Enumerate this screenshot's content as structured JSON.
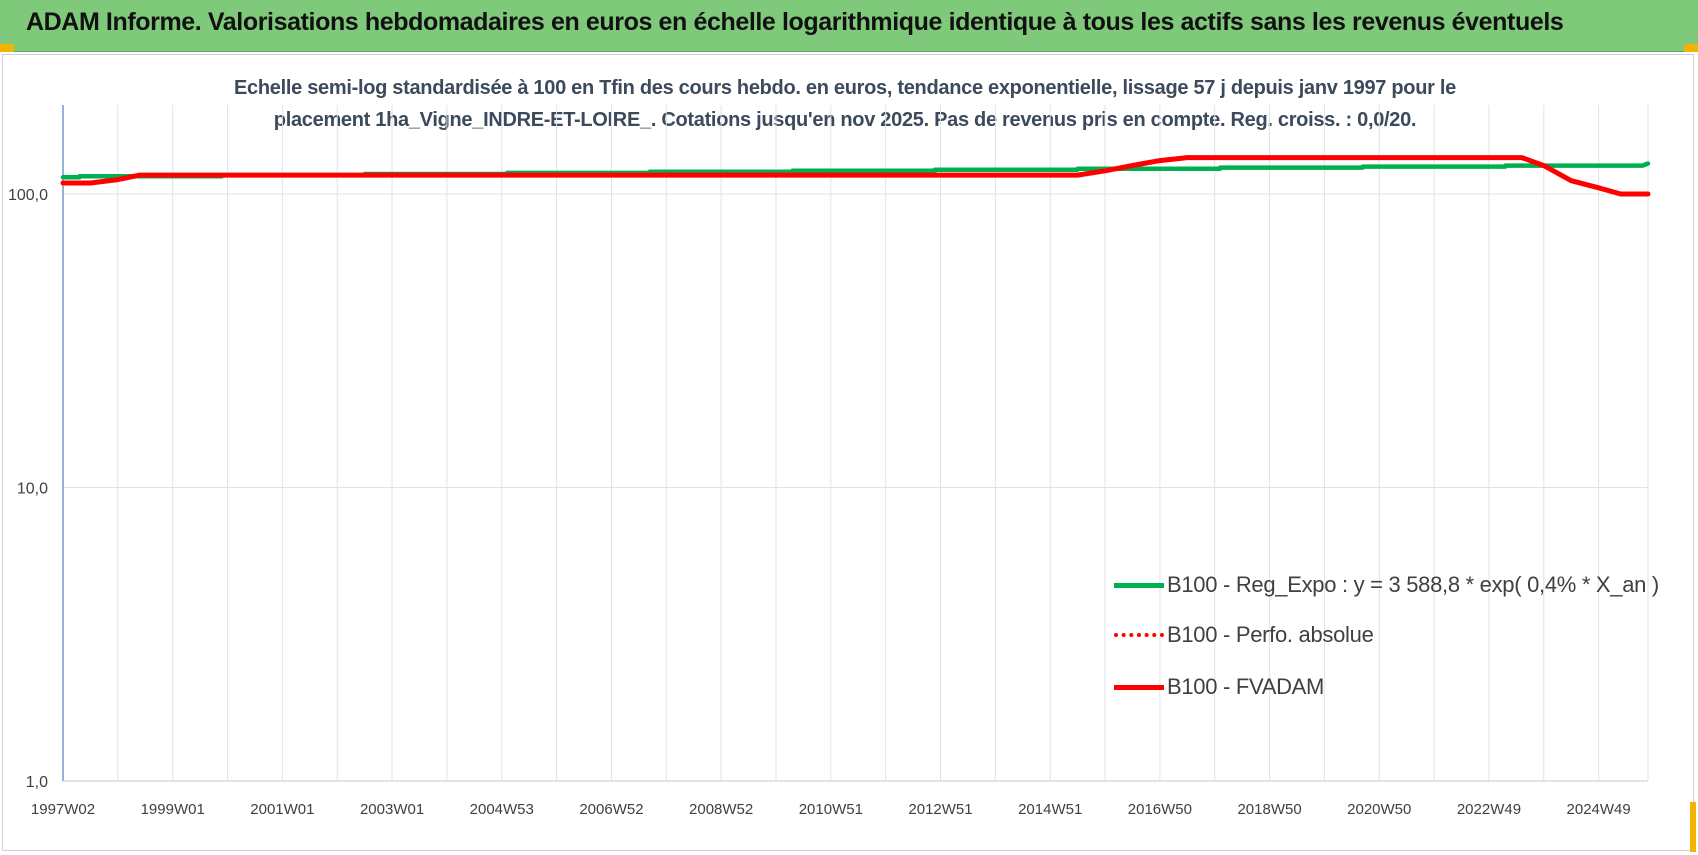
{
  "header": {
    "title": "ADAM Informe. Valorisations hebdomadaires en euros en échelle logarithmique identique à tous les actifs sans les revenus éventuels"
  },
  "chart_data": {
    "type": "line",
    "title": "Echelle semi-log standardisée à 100 en Tfin des cours hebdo. en euros, tendance exponentielle, lissage 57 j depuis janv 1997 pour le",
    "subtitle": "placement 1ha_Vigne_INDRE-ET-LOIRE_. Cotations jusqu'en nov 2025. Pas de revenus pris en compte. Reg. croiss. : 0,0/20.",
    "y_scale": "log",
    "ylim": [
      1,
      200
    ],
    "y_ticks": [
      {
        "value": 1,
        "label": "1,0"
      },
      {
        "value": 10,
        "label": "10,0"
      },
      {
        "value": 100,
        "label": "100,0"
      }
    ],
    "x_range": [
      1997.0,
      2025.9
    ],
    "x_ticks": [
      {
        "value": 1997.0,
        "label": "1997W02"
      },
      {
        "value": 1999.0,
        "label": "1999W01"
      },
      {
        "value": 2001.0,
        "label": "2001W01"
      },
      {
        "value": 2003.0,
        "label": "2003W01"
      },
      {
        "value": 2005.0,
        "label": "2004W53"
      },
      {
        "value": 2007.0,
        "label": "2006W52"
      },
      {
        "value": 2009.0,
        "label": "2008W52"
      },
      {
        "value": 2011.0,
        "label": "2010W51"
      },
      {
        "value": 2013.0,
        "label": "2012W51"
      },
      {
        "value": 2015.0,
        "label": "2014W51"
      },
      {
        "value": 2017.0,
        "label": "2016W50"
      },
      {
        "value": 2019.0,
        "label": "2018W50"
      },
      {
        "value": 2021.0,
        "label": "2020W50"
      },
      {
        "value": 2023.0,
        "label": "2022W49"
      },
      {
        "value": 2025.0,
        "label": "2024W49"
      }
    ],
    "grid": "vertical",
    "legend_position": "bottom-right",
    "series": [
      {
        "name": "B100 - Reg_Expo : y = 3 588,8 * exp( 0,4% *  X_an )",
        "color": "#00b050",
        "style": "solid",
        "points": [
          [
            1997.0,
            114
          ],
          [
            1997.3,
            114
          ],
          [
            1997.3,
            115
          ],
          [
            1999.9,
            115
          ],
          [
            1999.9,
            116
          ],
          [
            2002.5,
            116
          ],
          [
            2002.5,
            117
          ],
          [
            2005.1,
            117
          ],
          [
            2005.1,
            118
          ],
          [
            2007.7,
            118
          ],
          [
            2007.7,
            119
          ],
          [
            2010.3,
            119
          ],
          [
            2010.3,
            120
          ],
          [
            2012.9,
            120
          ],
          [
            2012.9,
            121
          ],
          [
            2015.5,
            121
          ],
          [
            2015.5,
            122
          ],
          [
            2018.1,
            122
          ],
          [
            2018.1,
            123
          ],
          [
            2020.7,
            123
          ],
          [
            2020.7,
            124
          ],
          [
            2023.3,
            124
          ],
          [
            2023.3,
            125
          ],
          [
            2025.8,
            125
          ],
          [
            2025.9,
            127
          ]
        ]
      },
      {
        "name": "B100 - Perfo. absolue",
        "color": "#ff0000",
        "style": "dotted",
        "points": []
      },
      {
        "name": "B100 - FVADAM",
        "color": "#ff0000",
        "style": "solid",
        "points": [
          [
            1997.0,
            109
          ],
          [
            1997.5,
            109
          ],
          [
            1998.0,
            112
          ],
          [
            1998.4,
            116
          ],
          [
            1999.5,
            116
          ],
          [
            2003.0,
            116
          ],
          [
            2008.0,
            116
          ],
          [
            2012.0,
            116
          ],
          [
            2015.5,
            116
          ],
          [
            2016.0,
            120
          ],
          [
            2016.6,
            126
          ],
          [
            2017.0,
            130
          ],
          [
            2017.5,
            133
          ],
          [
            2020.0,
            133
          ],
          [
            2023.0,
            133
          ],
          [
            2023.6,
            133
          ],
          [
            2024.0,
            125
          ],
          [
            2024.5,
            111
          ],
          [
            2025.0,
            105
          ],
          [
            2025.4,
            100
          ],
          [
            2025.9,
            100
          ]
        ]
      }
    ]
  }
}
